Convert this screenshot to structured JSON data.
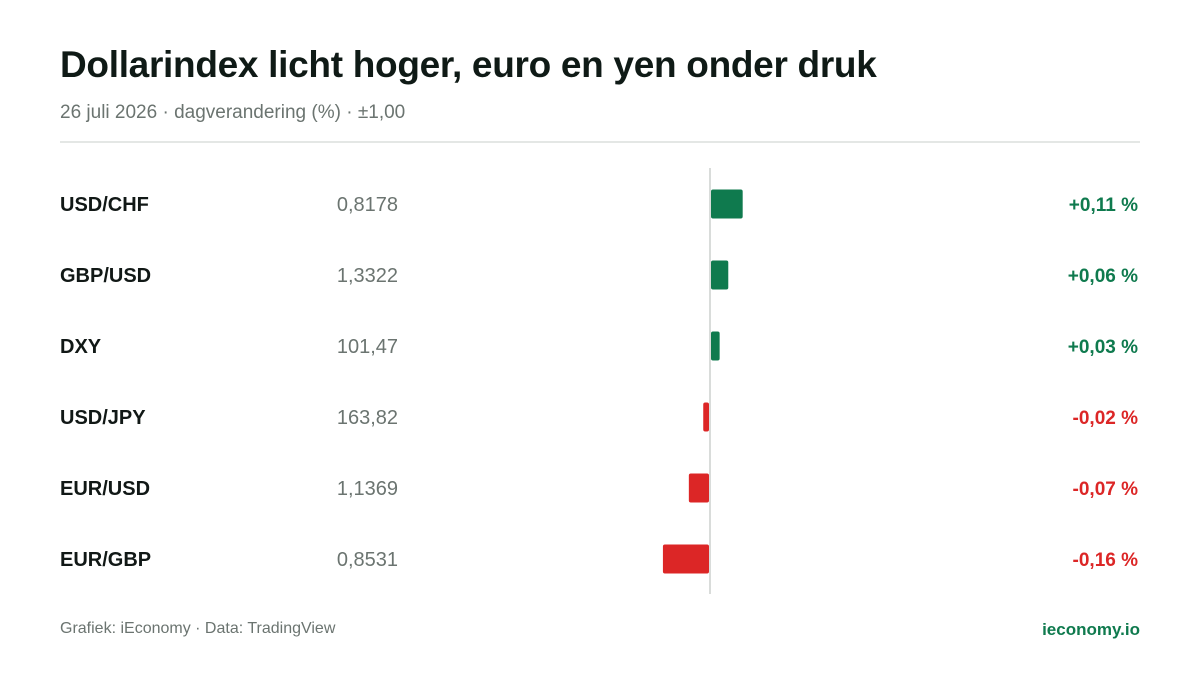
{
  "header": {
    "title": "Dollarindex licht hoger, euro en yen onder druk",
    "subtitle": "26 juli 2026 · dagverandering (%) · ±1,00"
  },
  "footer": {
    "source": "Grafiek: iEconomy · Data: TradingView",
    "brand": "ieconomy.io"
  },
  "colors": {
    "positive": "#0f7a4e",
    "negative": "#dc2626",
    "baseline": "#d9dcda"
  },
  "chart_data": {
    "type": "bar",
    "orientation": "horizontal",
    "diverging": true,
    "categories": [
      "USD/CHF",
      "GBP/USD",
      "DXY",
      "USD/JPY",
      "EUR/USD",
      "EUR/GBP"
    ],
    "quotes": [
      "0,8178",
      "1,3322",
      "101,47",
      "163,82",
      "1,1369",
      "0,8531"
    ],
    "values": [
      0.11,
      0.06,
      0.03,
      -0.02,
      -0.07,
      -0.16
    ],
    "value_labels": [
      "+0,11 %",
      "+0,06 %",
      "+0,03 %",
      "-0,02 %",
      "-0,07 %",
      "-0,16 %"
    ],
    "unit": "%",
    "grid": false
  }
}
